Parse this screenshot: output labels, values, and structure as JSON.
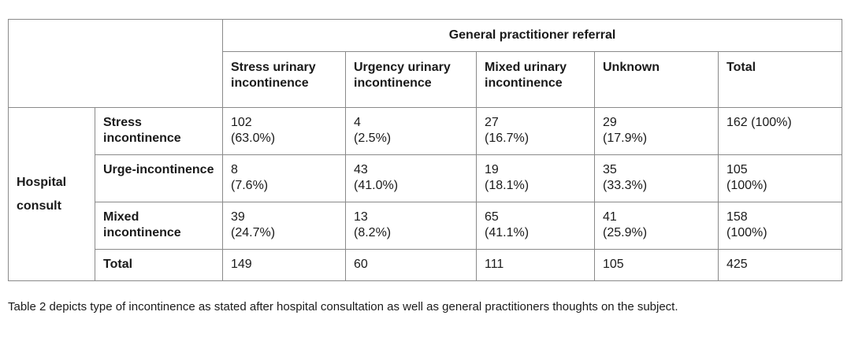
{
  "table": {
    "header_title": "General practitioner referral",
    "row_group_label": "Hospital consult",
    "columns": [
      "Stress urinary incontinence",
      "Urgency urinary incontinence",
      "Mixed urinary incontinence",
      "Unknown",
      "Total"
    ],
    "rows": [
      {
        "label": "Stress incontinence",
        "cells": [
          {
            "n": "102",
            "pct": "(63.0%)"
          },
          {
            "n": "4",
            "pct": "(2.5%)"
          },
          {
            "n": "27",
            "pct": "(16.7%)"
          },
          {
            "n": "29",
            "pct": "(17.9%)"
          },
          {
            "n": "162 (100%)",
            "pct": ""
          }
        ]
      },
      {
        "label": "Urge-incontinence",
        "cells": [
          {
            "n": "8",
            "pct": "(7.6%)"
          },
          {
            "n": "43",
            "pct": "(41.0%)"
          },
          {
            "n": "19",
            "pct": "(18.1%)"
          },
          {
            "n": "35",
            "pct": "(33.3%)"
          },
          {
            "n": "105",
            "pct": "(100%)"
          }
        ]
      },
      {
        "label": "Mixed incontinence",
        "cells": [
          {
            "n": "39",
            "pct": "(24.7%)"
          },
          {
            "n": "13",
            "pct": "(8.2%)"
          },
          {
            "n": "65",
            "pct": "(41.1%)"
          },
          {
            "n": "41",
            "pct": "(25.9%)"
          },
          {
            "n": "158",
            "pct": "(100%)"
          }
        ]
      }
    ],
    "total_row": {
      "label": "Total",
      "values": [
        "149",
        "60",
        "111",
        "105",
        "425"
      ]
    }
  },
  "caption": "Table 2 depicts type of incontinence as stated after hospital consultation as well as general practitioners thoughts on the subject."
}
